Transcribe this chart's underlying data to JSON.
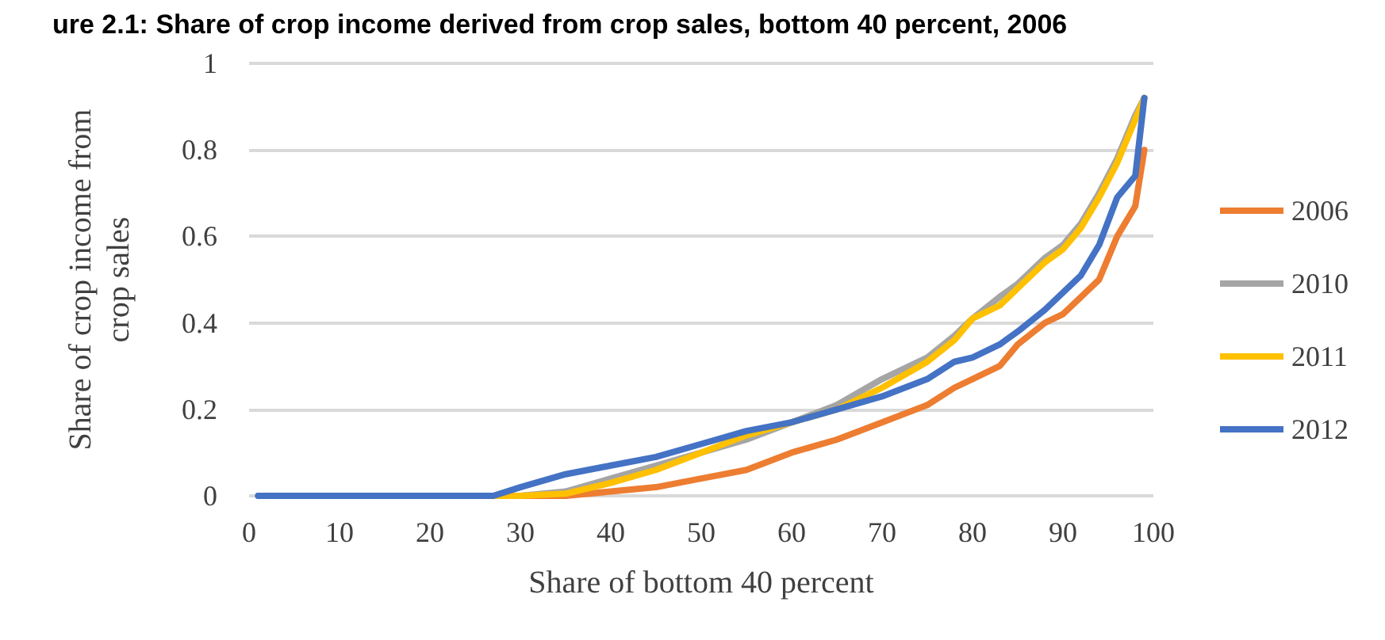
{
  "chart_data": {
    "type": "line",
    "title": "ure 2.1: Share of crop income derived from crop sales, bottom 40 percent, 2006",
    "xlabel": "Share of bottom 40 percent",
    "ylabel": "Share of crop income from crop sales",
    "x": [
      1,
      10,
      20,
      27,
      30,
      35,
      40,
      45,
      50,
      55,
      60,
      65,
      70,
      75,
      78,
      80,
      83,
      85,
      88,
      90,
      92,
      94,
      96,
      98,
      99
    ],
    "series": [
      {
        "name": "2006",
        "color": "#ed7d31",
        "values": [
          null,
          null,
          null,
          0,
          0,
          0,
          0.01,
          0.02,
          0.04,
          0.06,
          0.1,
          0.13,
          0.17,
          0.21,
          0.25,
          0.27,
          0.3,
          0.35,
          0.4,
          0.42,
          0.46,
          0.5,
          0.6,
          0.67,
          0.8
        ]
      },
      {
        "name": "2010",
        "color": "#a5a5a5",
        "values": [
          0,
          0,
          0,
          0,
          0,
          0.01,
          0.04,
          0.07,
          0.1,
          0.13,
          0.17,
          0.21,
          0.27,
          0.32,
          0.37,
          0.41,
          0.46,
          0.49,
          0.55,
          0.58,
          0.63,
          0.7,
          0.78,
          0.88,
          0.92
        ]
      },
      {
        "name": "2011",
        "color": "#ffc000",
        "values": [
          null,
          null,
          0,
          0,
          0,
          0.005,
          0.03,
          0.06,
          0.1,
          0.14,
          0.17,
          0.2,
          0.25,
          0.31,
          0.36,
          0.41,
          0.44,
          0.48,
          0.54,
          0.57,
          0.62,
          0.69,
          0.77,
          0.87,
          0.92
        ]
      },
      {
        "name": "2012",
        "color": "#4472c4",
        "values": [
          0,
          0,
          0,
          0,
          0.02,
          0.05,
          0.07,
          0.09,
          0.12,
          0.15,
          0.17,
          0.2,
          0.23,
          0.27,
          0.31,
          0.32,
          0.35,
          0.38,
          0.43,
          0.47,
          0.51,
          0.58,
          0.69,
          0.74,
          0.92
        ]
      }
    ],
    "xlim": [
      0,
      100
    ],
    "xticks": [
      0,
      10,
      20,
      30,
      40,
      50,
      60,
      70,
      80,
      90,
      100
    ],
    "ylim": [
      0,
      1
    ],
    "yticks": [
      0,
      0.2,
      0.4,
      0.6,
      0.8,
      1
    ],
    "grid": "y",
    "legend": "right",
    "marker": "none",
    "line_style": "solid"
  }
}
